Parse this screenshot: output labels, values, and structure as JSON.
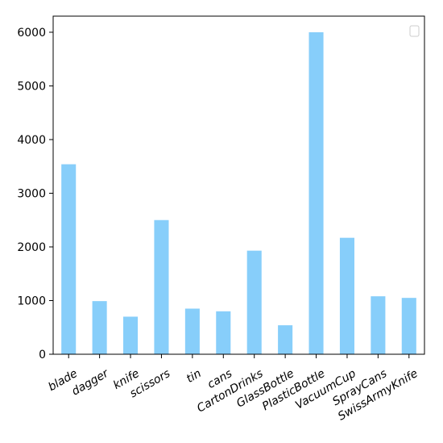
{
  "chart_data": {
    "type": "bar",
    "categories": [
      "blade",
      "dagger",
      "knife",
      "scissors",
      "tin",
      "cans",
      "CartonDrinks",
      "GlassBottle",
      "PlasticBottle",
      "VacuumCup",
      "SprayCans",
      "SwissArmyKnife"
    ],
    "values": [
      3540,
      990,
      700,
      2500,
      850,
      800,
      1930,
      540,
      6000,
      2170,
      1080,
      1050
    ],
    "yticks": [
      "0",
      "1000",
      "2000",
      "3000",
      "4000",
      "5000",
      "6000"
    ],
    "ylim": [
      0,
      6300
    ],
    "bar_color": "#87CEFA",
    "title": "",
    "xlabel": "",
    "ylabel": "",
    "legend": {
      "placement": "top-right",
      "entries": []
    },
    "grid": false
  }
}
